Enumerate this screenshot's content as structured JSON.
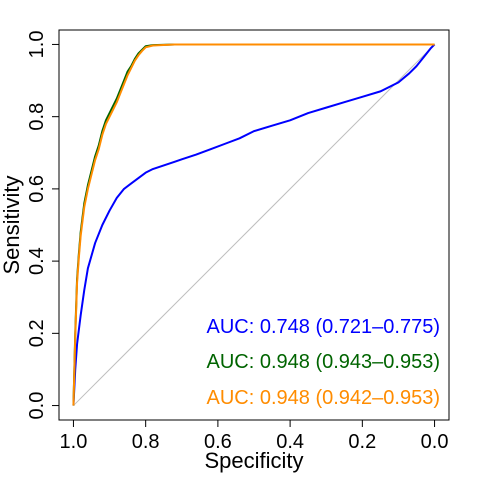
{
  "chart_data": {
    "type": "line",
    "title": "",
    "xlabel": "Specificity",
    "ylabel": "Sensitivity",
    "x_reversed": true,
    "xlim": [
      1.04,
      -0.04
    ],
    "ylim": [
      -0.04,
      1.04
    ],
    "x_ticks": [
      1.0,
      0.8,
      0.6,
      0.4,
      0.2,
      0.0
    ],
    "x_tick_labels": [
      "1.0",
      "0.8",
      "0.6",
      "0.4",
      "0.2",
      "0.0"
    ],
    "y_ticks": [
      0.0,
      0.2,
      0.4,
      0.6,
      0.8,
      1.0
    ],
    "y_tick_labels": [
      "0.0",
      "0.2",
      "0.4",
      "0.6",
      "0.8",
      "1.0"
    ],
    "grid": false,
    "legend_position": "bottom-right",
    "reference_line": {
      "from": [
        1,
        0
      ],
      "to": [
        0,
        1
      ],
      "color": "#bebebe"
    },
    "series": [
      {
        "legend": {
          "prefix": "AUC:",
          "value": "0.748 (0.721–0.775)"
        },
        "color": "#0000ff",
        "points": [
          [
            1.0,
            0.0
          ],
          [
            0.995,
            0.1
          ],
          [
            0.99,
            0.17
          ],
          [
            0.98,
            0.25
          ],
          [
            0.97,
            0.32
          ],
          [
            0.96,
            0.38
          ],
          [
            0.94,
            0.45
          ],
          [
            0.92,
            0.5
          ],
          [
            0.9,
            0.54
          ],
          [
            0.88,
            0.575
          ],
          [
            0.86,
            0.6
          ],
          [
            0.84,
            0.615
          ],
          [
            0.82,
            0.63
          ],
          [
            0.8,
            0.645
          ],
          [
            0.78,
            0.655
          ],
          [
            0.75,
            0.665
          ],
          [
            0.72,
            0.675
          ],
          [
            0.7,
            0.682
          ],
          [
            0.66,
            0.695
          ],
          [
            0.62,
            0.71
          ],
          [
            0.58,
            0.725
          ],
          [
            0.54,
            0.74
          ],
          [
            0.5,
            0.76
          ],
          [
            0.45,
            0.775
          ],
          [
            0.4,
            0.79
          ],
          [
            0.35,
            0.81
          ],
          [
            0.3,
            0.825
          ],
          [
            0.25,
            0.84
          ],
          [
            0.2,
            0.855
          ],
          [
            0.15,
            0.87
          ],
          [
            0.1,
            0.895
          ],
          [
            0.07,
            0.92
          ],
          [
            0.05,
            0.94
          ],
          [
            0.03,
            0.965
          ],
          [
            0.01,
            0.99
          ],
          [
            0.0,
            1.0
          ]
        ]
      },
      {
        "legend": {
          "prefix": "AUC:",
          "value": "0.948 (0.943–0.953)"
        },
        "color": "#006400",
        "points": [
          [
            1.0,
            0.0
          ],
          [
            0.995,
            0.2
          ],
          [
            0.99,
            0.35
          ],
          [
            0.985,
            0.42
          ],
          [
            0.98,
            0.48
          ],
          [
            0.975,
            0.52
          ],
          [
            0.97,
            0.56
          ],
          [
            0.96,
            0.61
          ],
          [
            0.95,
            0.65
          ],
          [
            0.94,
            0.69
          ],
          [
            0.93,
            0.72
          ],
          [
            0.92,
            0.76
          ],
          [
            0.91,
            0.79
          ],
          [
            0.9,
            0.81
          ],
          [
            0.89,
            0.83
          ],
          [
            0.88,
            0.85
          ],
          [
            0.87,
            0.875
          ],
          [
            0.86,
            0.9
          ],
          [
            0.85,
            0.925
          ],
          [
            0.84,
            0.94
          ],
          [
            0.83,
            0.96
          ],
          [
            0.82,
            0.975
          ],
          [
            0.81,
            0.985
          ],
          [
            0.8,
            0.995
          ],
          [
            0.78,
            0.998
          ],
          [
            0.72,
            1.0
          ],
          [
            0.6,
            1.0
          ],
          [
            0.4,
            1.0
          ],
          [
            0.2,
            1.0
          ],
          [
            0.0,
            1.0
          ]
        ]
      },
      {
        "legend": {
          "prefix": "AUC:",
          "value": "0.948 (0.942–0.953)"
        },
        "color": "#ff8c00",
        "points": [
          [
            1.0,
            0.0
          ],
          [
            0.995,
            0.19
          ],
          [
            0.99,
            0.34
          ],
          [
            0.985,
            0.41
          ],
          [
            0.98,
            0.47
          ],
          [
            0.975,
            0.51
          ],
          [
            0.97,
            0.55
          ],
          [
            0.96,
            0.6
          ],
          [
            0.95,
            0.64
          ],
          [
            0.94,
            0.68
          ],
          [
            0.93,
            0.71
          ],
          [
            0.92,
            0.75
          ],
          [
            0.91,
            0.78
          ],
          [
            0.9,
            0.8
          ],
          [
            0.89,
            0.82
          ],
          [
            0.88,
            0.84
          ],
          [
            0.87,
            0.865
          ],
          [
            0.86,
            0.89
          ],
          [
            0.85,
            0.915
          ],
          [
            0.84,
            0.935
          ],
          [
            0.83,
            0.955
          ],
          [
            0.82,
            0.97
          ],
          [
            0.81,
            0.982
          ],
          [
            0.8,
            0.992
          ],
          [
            0.78,
            0.997
          ],
          [
            0.72,
            1.0
          ],
          [
            0.6,
            1.0
          ],
          [
            0.4,
            1.0
          ],
          [
            0.2,
            1.0
          ],
          [
            0.0,
            1.0
          ]
        ]
      }
    ]
  }
}
